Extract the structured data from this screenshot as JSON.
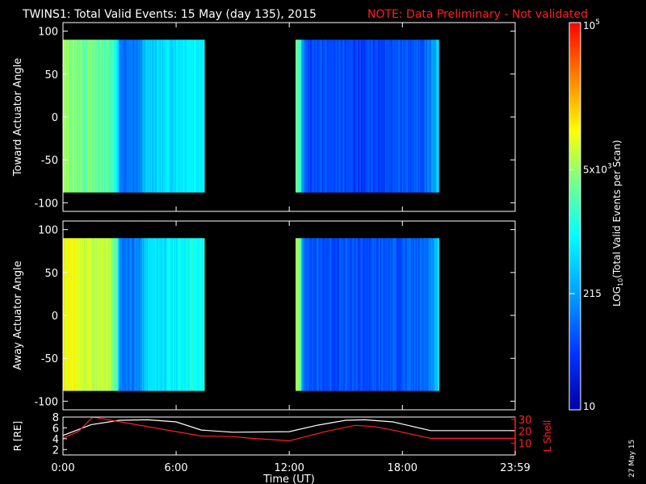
{
  "header": {
    "title": "TWINS1: Total Valid Events: 15 May (day 135), 2015",
    "note": "NOTE: Data Preliminary - Not validated",
    "note_color": "#ff2020"
  },
  "side_stamp": "27 May 15",
  "chart_data": [
    {
      "type": "heatmap",
      "panel": "toward",
      "ylabel": "Toward Actuator Angle",
      "xlim": [
        "0:00",
        "23:59"
      ],
      "ylim": [
        -110,
        110
      ],
      "yticks": [
        100,
        50,
        0,
        -50,
        -100
      ],
      "data_extent": {
        "angle": [
          -88,
          90
        ]
      },
      "blocks": [
        {
          "start": "0:00",
          "end": "7:30",
          "level_profile": [
            {
              "t": "0:00",
              "v": 0.62
            },
            {
              "t": "2:30",
              "v": 0.55
            },
            {
              "t": "2:50",
              "v": 0.48
            },
            {
              "t": "3:00",
              "v": 0.22
            },
            {
              "t": "4:00",
              "v": 0.25
            },
            {
              "t": "4:30",
              "v": 0.38
            },
            {
              "t": "5:30",
              "v": 0.4
            },
            {
              "t": "6:30",
              "v": 0.44
            },
            {
              "t": "7:30",
              "v": 0.45
            }
          ]
        },
        {
          "start": "12:20",
          "end": "19:55",
          "level_profile": [
            {
              "t": "12:20",
              "v": 0.6
            },
            {
              "t": "12:35",
              "v": 0.5
            },
            {
              "t": "12:40",
              "v": 0.3
            },
            {
              "t": "13:00",
              "v": 0.18
            },
            {
              "t": "16:00",
              "v": 0.17
            },
            {
              "t": "18:00",
              "v": 0.19
            },
            {
              "t": "19:00",
              "v": 0.2
            },
            {
              "t": "19:40",
              "v": 0.3
            },
            {
              "t": "19:55",
              "v": 0.42
            }
          ]
        }
      ]
    },
    {
      "type": "heatmap",
      "panel": "away",
      "ylabel": "Away Actuator Angle",
      "xlim": [
        "0:00",
        "23:59"
      ],
      "ylim": [
        -110,
        110
      ],
      "yticks": [
        100,
        50,
        0,
        -50,
        -100
      ],
      "data_extent": {
        "angle": [
          -88,
          90
        ]
      },
      "blocks": [
        {
          "start": "0:00",
          "end": "7:30",
          "level_profile": [
            {
              "t": "0:00",
              "v": 0.72
            },
            {
              "t": "2:30",
              "v": 0.64
            },
            {
              "t": "2:50",
              "v": 0.55
            },
            {
              "t": "3:00",
              "v": 0.24
            },
            {
              "t": "4:00",
              "v": 0.26
            },
            {
              "t": "4:30",
              "v": 0.4
            },
            {
              "t": "5:30",
              "v": 0.42
            },
            {
              "t": "6:30",
              "v": 0.46
            },
            {
              "t": "7:30",
              "v": 0.47
            }
          ]
        },
        {
          "start": "12:20",
          "end": "19:55",
          "level_profile": [
            {
              "t": "12:20",
              "v": 0.64
            },
            {
              "t": "12:35",
              "v": 0.55
            },
            {
              "t": "12:40",
              "v": 0.3
            },
            {
              "t": "13:00",
              "v": 0.19
            },
            {
              "t": "16:00",
              "v": 0.18
            },
            {
              "t": "18:00",
              "v": 0.2
            },
            {
              "t": "19:00",
              "v": 0.21
            },
            {
              "t": "19:40",
              "v": 0.3
            },
            {
              "t": "19:55",
              "v": 0.45
            }
          ]
        }
      ]
    },
    {
      "type": "line",
      "panel": "orbit",
      "xlabel": "Time (UT)",
      "xticks": [
        "0:00",
        "6:00",
        "12:00",
        "18:00",
        "23:59"
      ],
      "ylabel_left": "R [RE]",
      "ylabel_left_sub": "E",
      "ylim_left": [
        1,
        8
      ],
      "yticks_left": [
        2,
        4,
        6,
        8
      ],
      "ylabel_right": "L Shell",
      "ylim_right": [
        0,
        32
      ],
      "yticks_right": [
        10,
        20,
        30
      ],
      "right_axis_color": "#ff2020",
      "series": [
        {
          "axis": "left",
          "color": "#ffffff",
          "points": [
            [
              "0:00",
              4.6
            ],
            [
              "1:30",
              6.6
            ],
            [
              "3:00",
              7.4
            ],
            [
              "4:30",
              7.5
            ],
            [
              "6:00",
              7.1
            ],
            [
              "7:20",
              5.6
            ],
            [
              "9:00",
              5.2
            ],
            [
              "12:00",
              5.3
            ],
            [
              "13:30",
              6.5
            ],
            [
              "15:00",
              7.4
            ],
            [
              "16:00",
              7.5
            ],
            [
              "17:30",
              7.1
            ],
            [
              "19:30",
              5.5
            ],
            [
              "23:59",
              5.5
            ]
          ]
        },
        {
          "axis": "right",
          "color": "#ff2020",
          "points": [
            [
              "0:00",
              14
            ],
            [
              "0:50",
              20
            ],
            [
              "1:35",
              32
            ],
            [
              "7:20",
              16
            ],
            [
              "9:00",
              15.5
            ],
            [
              "10:00",
              14
            ],
            [
              "12:00",
              12
            ],
            [
              "14:00",
              20
            ],
            [
              "15:30",
              25
            ],
            [
              "16:30",
              24
            ],
            [
              "17:30",
              21
            ],
            [
              "19:30",
              14
            ],
            [
              "23:59",
              14
            ]
          ]
        }
      ]
    }
  ],
  "colorbar": {
    "label": "LOG",
    "label_sub": "10",
    "label_rest": "(Total Valid Events per Scan)",
    "tick_top_base": "10",
    "tick_top_exp": "5",
    "tick_mid_base": "5x10",
    "tick_mid_exp": "3",
    "tick_low": "215",
    "tick_bottom": "10",
    "tick_levels": {
      "top": 1.0,
      "mid": 0.62,
      "low": 0.3,
      "bottom": 0.0
    },
    "colors": [
      "#0000a0",
      "#0030ff",
      "#00a0ff",
      "#00ffff",
      "#80ff80",
      "#ffff00",
      "#ff8000",
      "#ff0000"
    ]
  }
}
